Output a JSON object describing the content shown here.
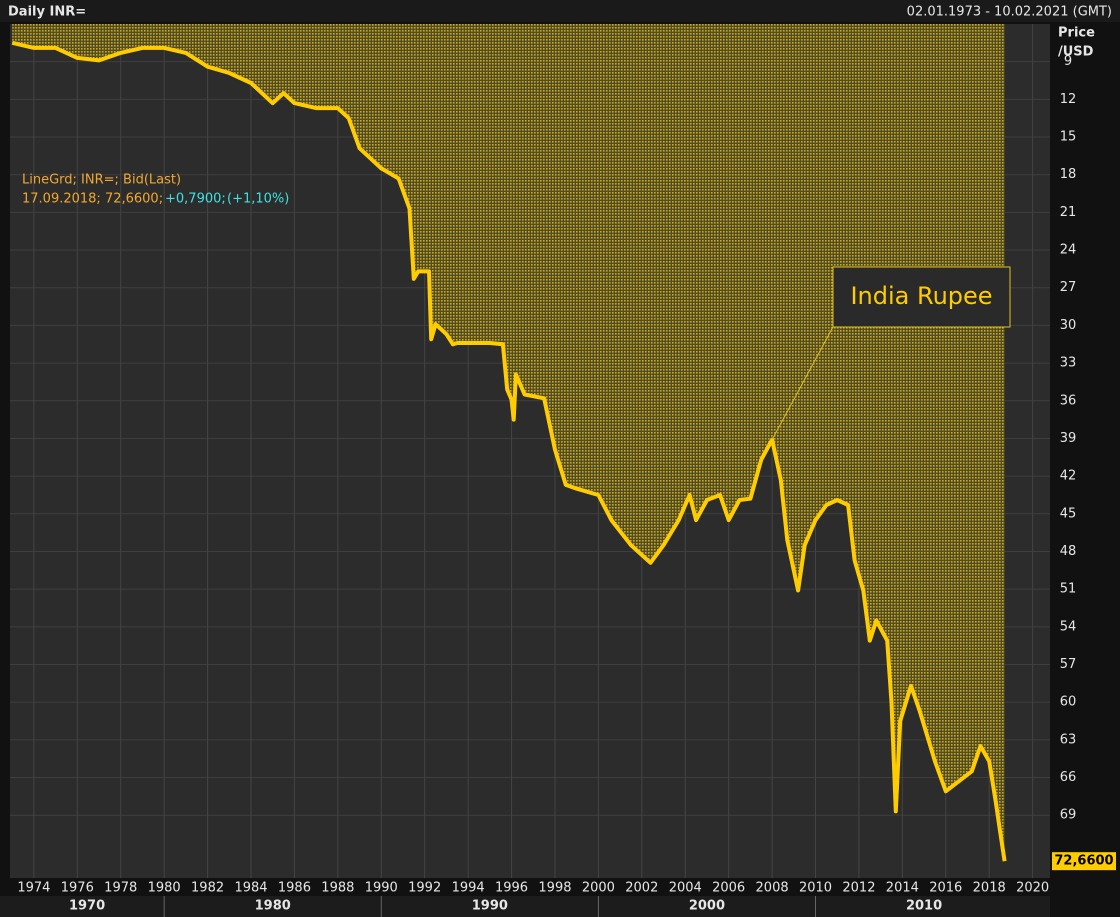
{
  "chart_data": {
    "type": "area",
    "title": "Daily INR=",
    "date_range": "02.01.1973 - 10.02.2021 (GMT)",
    "y_axis_label": [
      "Price",
      "/USD"
    ],
    "legend_lines": [
      "LineGrd; INR=; Bid(Last)"
    ],
    "info": {
      "date_value": "17.09.2018; 72,6600;",
      "change": "+0,7900;",
      "change_pct": "(+1,10%)"
    },
    "annotation": {
      "text": "India Rupee",
      "x": 2008,
      "y": 39.1
    },
    "last_label": {
      "value": 72.66,
      "label": "72,6600"
    },
    "series": [
      {
        "name": "INR=",
        "color": "#ffcc00",
        "x": [
          1973.0,
          1974,
          1975,
          1976,
          1977,
          1978,
          1979,
          1980,
          1981,
          1982,
          1983,
          1984,
          1985,
          1985.5,
          1986,
          1987,
          1988,
          1988.5,
          1989,
          1990,
          1990.8,
          1991.3,
          1991.5,
          1991.7,
          1992.2,
          1992.3,
          1992.5,
          1993.0,
          1993.3,
          1993.5,
          1995.0,
          1995.6,
          1995.8,
          1996.0,
          1996.1,
          1996.2,
          1996.6,
          1997.5,
          1998.0,
          1998.5,
          1999,
          2000,
          2000.6,
          2001.5,
          2002.4,
          2003,
          2003.7,
          2004.2,
          2004.5,
          2005,
          2005.6,
          2006,
          2006.5,
          2007,
          2007.5,
          2008,
          2008.4,
          2008.7,
          2009.2,
          2009.5,
          2010,
          2010.5,
          2011,
          2011.5,
          2011.8,
          2012.2,
          2012.5,
          2012.8,
          2013.3,
          2013.5,
          2013.7,
          2013.9,
          2014.4,
          2014.8,
          2015.5,
          2016,
          2016.6,
          2017.2,
          2017.6,
          2018,
          2018.3,
          2018.5,
          2018.71
        ],
        "values": [
          7.5,
          7.9,
          7.9,
          8.7,
          8.9,
          8.3,
          7.9,
          7.9,
          8.3,
          9.4,
          9.9,
          10.7,
          12.3,
          11.5,
          12.3,
          12.7,
          12.7,
          13.5,
          15.9,
          17.5,
          18.3,
          20.7,
          26.3,
          25.7,
          25.7,
          31.1,
          29.9,
          30.7,
          31.5,
          31.4,
          31.4,
          31.5,
          35.1,
          35.9,
          37.5,
          33.9,
          35.5,
          35.8,
          39.9,
          42.7,
          43,
          43.5,
          45.5,
          47.5,
          48.9,
          47.5,
          45.5,
          43.5,
          45.5,
          43.9,
          43.5,
          45.5,
          43.9,
          43.8,
          40.7,
          39.1,
          42.3,
          47.1,
          51.1,
          47.5,
          45.5,
          44.3,
          43.9,
          44.3,
          48.7,
          51.1,
          55.1,
          53.5,
          55.1,
          60,
          68.7,
          61.5,
          58.7,
          60.7,
          64.7,
          67.1,
          66.3,
          65.5,
          63.5,
          64.7,
          67.9,
          70.3,
          72.66
        ]
      }
    ],
    "xlim": [
      1972.9,
      2020.8
    ],
    "ylim": [
      6,
      74
    ],
    "y_inverted": true,
    "xticks": [
      1974,
      1976,
      1978,
      1980,
      1982,
      1984,
      1986,
      1988,
      1990,
      1992,
      1994,
      1996,
      1998,
      2000,
      2002,
      2004,
      2006,
      2008,
      2010,
      2012,
      2014,
      2016,
      2018,
      2020
    ],
    "yticks": [
      9,
      12,
      15,
      18,
      21,
      24,
      27,
      30,
      33,
      36,
      39,
      42,
      45,
      48,
      51,
      54,
      57,
      60,
      63,
      66,
      69
    ],
    "decades": [
      1970,
      1980,
      1990,
      2000,
      2010
    ],
    "grid": true
  }
}
